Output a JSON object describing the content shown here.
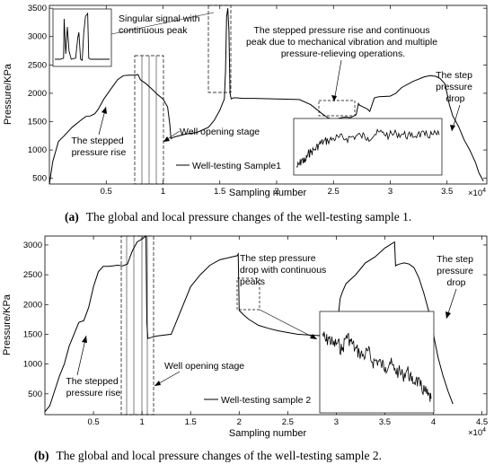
{
  "chart_data": [
    {
      "type": "line",
      "panel_label": "(a)",
      "caption": "The global and local pressure changes of the well-testing sample 1.",
      "xlabel": "Sampling number",
      "ylabel": "Pressure/KPa",
      "x_multiplier": "×10",
      "x_multiplier_exp": "4",
      "xlim": [
        0,
        3.85
      ],
      "ylim": [
        400,
        3550
      ],
      "xticks": [
        0.5,
        1,
        1.5,
        2,
        2.5,
        3,
        3.5
      ],
      "xtick_labels": [
        "0.5",
        "1",
        "1.5",
        "2",
        "2.5",
        "3",
        "3.5"
      ],
      "yticks": [
        500,
        1000,
        1500,
        2000,
        2500,
        3000,
        3500
      ],
      "ytick_labels": [
        "500",
        "1000",
        "1500",
        "2000",
        "2500",
        "3000",
        "3500"
      ],
      "legend": "Well-testing Sample1",
      "series": [
        {
          "x": [
            0.0,
            0.03,
            0.08,
            0.13,
            0.2,
            0.28,
            0.32,
            0.36,
            0.4,
            0.43,
            0.48,
            0.55,
            0.6,
            0.65,
            0.7,
            0.75,
            0.78,
            0.8,
            0.85,
            0.9,
            0.95,
            1.0,
            1.04,
            1.06,
            1.07,
            1.1,
            1.2,
            1.3,
            1.4,
            1.45,
            1.5,
            1.54,
            1.55,
            1.56,
            1.57,
            1.58,
            1.59,
            1.6,
            1.62,
            1.65,
            1.7,
            1.8,
            2.0,
            2.2,
            2.3,
            2.4,
            2.45,
            2.5,
            2.55,
            2.6,
            2.65,
            2.7,
            2.72,
            2.73,
            2.76,
            2.78,
            2.8,
            2.82,
            2.86,
            2.9,
            3.0,
            3.05,
            3.1,
            3.2,
            3.3,
            3.35,
            3.4,
            3.44,
            3.48,
            3.5,
            3.52,
            3.55,
            3.6,
            3.65,
            3.7,
            3.75,
            3.78,
            3.82
          ],
          "y": [
            400,
            800,
            1150,
            1250,
            1400,
            1530,
            1590,
            1600,
            1640,
            1720,
            1900,
            2100,
            2240,
            2310,
            2320,
            2320,
            2330,
            2240,
            2170,
            2080,
            1980,
            1900,
            1760,
            1450,
            1200,
            1230,
            1280,
            1310,
            1400,
            1520,
            1700,
            1900,
            2400,
            3350,
            3500,
            3100,
            2000,
            1900,
            1920,
            1920,
            1910,
            1910,
            1900,
            1890,
            1800,
            1640,
            1570,
            1530,
            1560,
            1580,
            1570,
            1620,
            1820,
            1790,
            1760,
            1740,
            1720,
            1680,
            1920,
            1940,
            1950,
            2000,
            2100,
            2210,
            2290,
            2310,
            2300,
            2260,
            2170,
            2000,
            1800,
            1600,
            1420,
            1180,
            1000,
            780,
            600,
            450
          ]
        }
      ],
      "inset_left": {
        "x": [
          0,
          0.1,
          0.16,
          0.17,
          0.2,
          0.23,
          0.26,
          0.3,
          0.38,
          0.42,
          0.44,
          0.47,
          0.5,
          0.53,
          0.56,
          0.6,
          0.62,
          0.65,
          0.7,
          1.0
        ],
        "y": [
          0.1,
          0.1,
          0.12,
          0.85,
          0.2,
          0.7,
          0.25,
          0.1,
          0.12,
          0.5,
          0.6,
          0.1,
          0.08,
          0.6,
          0.9,
          0.95,
          0.12,
          0.1,
          0.1,
          0.1
        ]
      },
      "inset_right": {
        "x": [
          0.0,
          0.02,
          0.04,
          0.06,
          0.08,
          0.1,
          0.13,
          0.16,
          0.19,
          0.22,
          0.26,
          0.3,
          0.35,
          0.4,
          0.45,
          0.5,
          0.55,
          0.6,
          0.65,
          0.7,
          0.75,
          0.8,
          0.85,
          0.9,
          0.95,
          1.0
        ],
        "y": [
          0.1,
          0.15,
          0.25,
          0.2,
          0.35,
          0.4,
          0.45,
          0.55,
          0.6,
          0.62,
          0.66,
          0.68,
          0.66,
          0.7,
          0.72,
          0.68,
          0.74,
          0.78,
          0.72,
          0.76,
          0.74,
          0.7,
          0.75,
          0.72,
          0.74,
          0.73
        ]
      },
      "annotations": {
        "singular": [
          "Singular signal with",
          "continuous peak"
        ],
        "vibration": [
          "The stepped pressure rise and continuous",
          "peak due to mechanical vibration and multiple",
          "pressure-relieving operations."
        ],
        "step_drop": [
          "The step",
          "pressure",
          "drop"
        ],
        "well_open": "Well opening stage",
        "stepped_rise": [
          "The stepped",
          "pressure rise"
        ]
      }
    },
    {
      "type": "line",
      "panel_label": "(b)",
      "caption": "The global and local pressure changes of the well-testing sample 2.",
      "xlabel": "Sampling number",
      "ylabel": "Pressure/KPa",
      "x_multiplier": "×10",
      "x_multiplier_exp": "4",
      "xlim": [
        0,
        4.55
      ],
      "ylim": [
        150,
        3150
      ],
      "xticks": [
        0.5,
        1,
        1.5,
        2,
        2.5,
        3,
        3.5,
        4,
        4.5
      ],
      "xtick_labels": [
        "0.5",
        "1",
        "1.5",
        "2",
        "2.5",
        "3",
        "3.5",
        "4",
        "4.5"
      ],
      "yticks": [
        500,
        1000,
        1500,
        2000,
        2500,
        3000
      ],
      "ytick_labels": [
        "500",
        "1000",
        "1500",
        "2000",
        "2500",
        "3000"
      ],
      "legend": "Well-testing sample 2",
      "series": [
        {
          "x": [
            0.0,
            0.05,
            0.1,
            0.15,
            0.2,
            0.25,
            0.3,
            0.35,
            0.4,
            0.45,
            0.5,
            0.55,
            0.6,
            0.65,
            0.7,
            0.75,
            0.8,
            0.85,
            0.9,
            0.95,
            1.0,
            1.04,
            1.05,
            1.06,
            1.1,
            1.15,
            1.3,
            1.5,
            1.6,
            1.7,
            1.8,
            1.9,
            1.98,
            1.99,
            2.0,
            2.05,
            2.1,
            2.2,
            2.3,
            2.4,
            2.5,
            2.6,
            2.7,
            2.8,
            2.9,
            3.0,
            3.02,
            3.04,
            3.06,
            3.1,
            3.2,
            3.3,
            3.4,
            3.5,
            3.6,
            3.61,
            3.62,
            3.65,
            3.7,
            3.75,
            3.8,
            3.85,
            3.9,
            3.95,
            4.0,
            4.05,
            4.1,
            4.15,
            4.2
          ],
          "y": [
            200,
            300,
            550,
            800,
            1000,
            1300,
            1500,
            1700,
            1730,
            1950,
            2300,
            2550,
            2640,
            2640,
            2650,
            2660,
            2650,
            2680,
            2900,
            3050,
            3100,
            3150,
            1700,
            1430,
            1450,
            1470,
            1500,
            2300,
            2500,
            2660,
            2750,
            2790,
            2820,
            2850,
            1900,
            1820,
            1750,
            1650,
            1600,
            1560,
            1530,
            1500,
            1490,
            1480,
            1470,
            1500,
            1800,
            2100,
            2200,
            2350,
            2500,
            2700,
            2800,
            2950,
            3050,
            2650,
            2660,
            2680,
            2700,
            2680,
            2620,
            2450,
            2200,
            1900,
            1500,
            1100,
            800,
            550,
            330
          ]
        }
      ],
      "inset_right": {
        "x": [
          0.0,
          0.03,
          0.06,
          0.1,
          0.14,
          0.18,
          0.22,
          0.26,
          0.3,
          0.34,
          0.38,
          0.42,
          0.46,
          0.5,
          0.54,
          0.58,
          0.62,
          0.66,
          0.7,
          0.74,
          0.78,
          0.82,
          0.86,
          0.9,
          0.94,
          0.97,
          1.0
        ],
        "y": [
          0.8,
          0.72,
          0.75,
          0.68,
          0.7,
          0.62,
          0.78,
          0.72,
          0.64,
          0.6,
          0.56,
          0.62,
          0.5,
          0.52,
          0.48,
          0.45,
          0.5,
          0.42,
          0.4,
          0.36,
          0.42,
          0.3,
          0.32,
          0.25,
          0.2,
          0.15,
          0.12
        ]
      },
      "annotations": {
        "step_drop_cont": [
          "The step pressure",
          "drop with continuous",
          "peaks"
        ],
        "step_drop": [
          "The step",
          "pressure",
          "drop"
        ],
        "well_open": "Well opening stage",
        "stepped_rise": [
          "The stepped",
          "pressure rise"
        ]
      }
    }
  ]
}
